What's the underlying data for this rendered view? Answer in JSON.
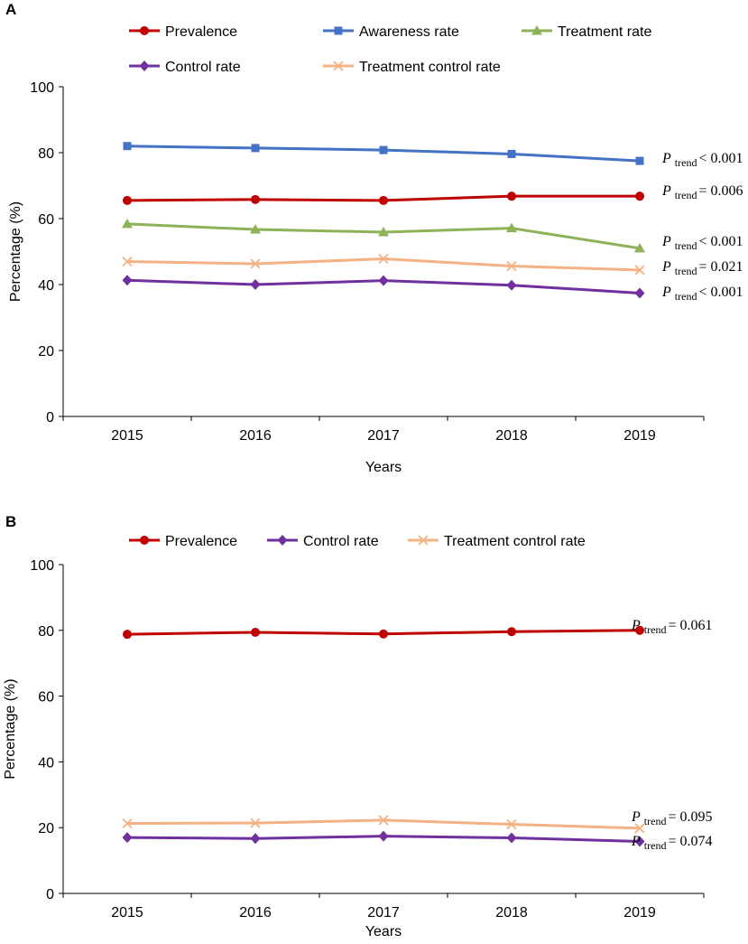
{
  "chart_data": [
    {
      "panel_label": "A",
      "type": "line",
      "title": "",
      "xlabel": "Years",
      "ylabel": "Percentage (%)",
      "ylim": [
        0,
        100
      ],
      "yticks": [
        "0",
        "20",
        "40",
        "60",
        "80",
        "100"
      ],
      "categories": [
        "2015",
        "2016",
        "2017",
        "2018",
        "2019"
      ],
      "series": [
        {
          "name": "Prevalence",
          "color": "#C00000",
          "marker": "circle",
          "values": [
            65.5,
            65.8,
            65.5,
            66.8,
            66.8
          ],
          "annotation": {
            "stat": "P",
            "sub": "trend",
            "text": "= 0.006"
          }
        },
        {
          "name": "Awareness rate",
          "color": "#4472C4",
          "marker": "square",
          "values": [
            82.0,
            81.4,
            80.8,
            79.6,
            77.5
          ],
          "annotation": {
            "stat": "P",
            "sub": "trend",
            "text": "< 0.001"
          }
        },
        {
          "name": "Treatment rate",
          "color": "#8DB257",
          "marker": "triangle",
          "values": [
            58.4,
            56.7,
            55.9,
            57.1,
            51.0
          ],
          "annotation": {
            "stat": "P",
            "sub": "trend",
            "text": "< 0.001"
          }
        },
        {
          "name": "Control rate",
          "color": "#7030A0",
          "marker": "diamond",
          "values": [
            41.3,
            40.0,
            41.2,
            39.8,
            37.4
          ],
          "annotation": {
            "stat": "P",
            "sub": "trend",
            "text": "< 0.001"
          }
        },
        {
          "name": "Treatment control rate",
          "color": "#F4B183",
          "marker": "x",
          "values": [
            47.0,
            46.3,
            47.8,
            45.6,
            44.4
          ],
          "annotation": {
            "stat": "P",
            "sub": "trend",
            "text": "= 0.021"
          }
        }
      ],
      "legend": "top"
    },
    {
      "panel_label": "B",
      "type": "line",
      "title": "",
      "xlabel": "Years",
      "ylabel": "Percentage (%)",
      "ylim": [
        0,
        100
      ],
      "yticks": [
        "0",
        "20",
        "40",
        "60",
        "80",
        "100"
      ],
      "categories": [
        "2015",
        "2016",
        "2017",
        "2018",
        "2019"
      ],
      "series": [
        {
          "name": "Prevalence",
          "color": "#C00000",
          "marker": "circle",
          "values": [
            78.8,
            79.4,
            78.9,
            79.6,
            80.0
          ],
          "annotation": {
            "stat": "P",
            "sub": "trend",
            "text": "= 0.061"
          }
        },
        {
          "name": "Control rate",
          "color": "#7030A0",
          "marker": "diamond",
          "values": [
            17.0,
            16.7,
            17.4,
            16.9,
            15.8
          ],
          "annotation": {
            "stat": "P",
            "sub": "trend",
            "text": "= 0.074"
          }
        },
        {
          "name": "Treatment control rate",
          "color": "#F4B183",
          "marker": "x",
          "values": [
            21.3,
            21.4,
            22.3,
            21.0,
            19.8
          ],
          "annotation": {
            "stat": "P",
            "sub": "trend",
            "text": "= 0.095"
          }
        }
      ],
      "legend": "top"
    }
  ]
}
